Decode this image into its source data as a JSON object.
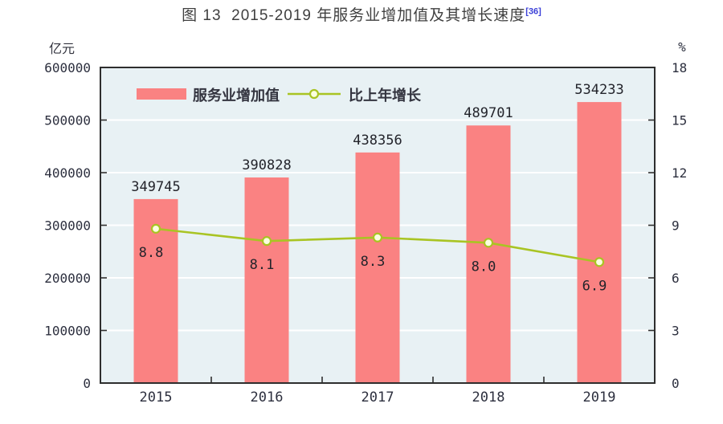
{
  "figure": {
    "title": "图 13  2015-2019 年服务业增加值及其增长速度",
    "title_ref": "[36]"
  },
  "chart_data": {
    "type": "combo-bar-line",
    "title": "图 13  2015-2019 年服务业增加值及其增长速度",
    "categories": [
      "2015",
      "2016",
      "2017",
      "2018",
      "2019"
    ],
    "series": [
      {
        "name": "服务业增加值",
        "type": "bar",
        "axis": "left",
        "values": [
          349745,
          390828,
          438356,
          489701,
          534233
        ],
        "value_labels": [
          "349745",
          "390828",
          "438356",
          "489701",
          "534233"
        ]
      },
      {
        "name": "比上年增长",
        "type": "line",
        "axis": "right",
        "values": [
          8.8,
          8.1,
          8.3,
          8.0,
          6.9
        ],
        "value_labels": [
          "8.8",
          "8.1",
          "8.3",
          "8.0",
          "6.9"
        ]
      }
    ],
    "left_axis": {
      "label": "亿元",
      "min": 0,
      "max": 600000,
      "step": 100000,
      "ticks": [
        "0",
        "100000",
        "200000",
        "300000",
        "400000",
        "500000",
        "600000"
      ]
    },
    "right_axis": {
      "label": "%",
      "min": 0,
      "max": 18,
      "step": 3,
      "ticks": [
        "0",
        "3",
        "6",
        "9",
        "12",
        "15",
        "18"
      ]
    },
    "legend": [
      "服务业增加值",
      "比上年增长"
    ],
    "legend_position": "inside-top-left",
    "grid": "horizontal-white-lines",
    "colors": {
      "bar": "#fa8282",
      "line": "#a9c423",
      "marker_fill": "#fbffdf",
      "plot_bg": "#e8f1f4",
      "grid": "#ffffff",
      "axis": "#2e2e2e",
      "text": "#2c2f3e",
      "title": "#3f3f3f",
      "ref": "#3a3fd8"
    }
  }
}
